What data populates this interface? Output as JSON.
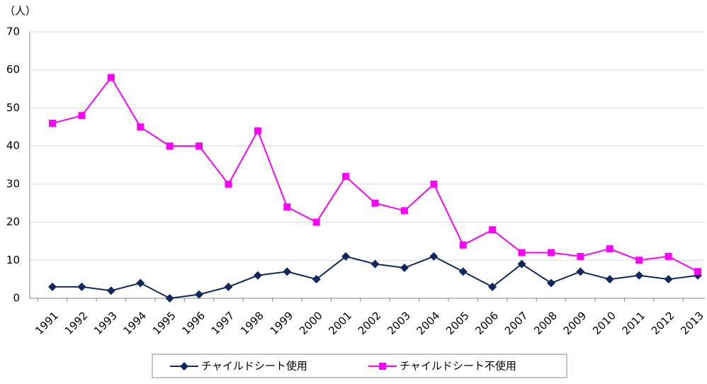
{
  "chart_data": {
    "type": "line",
    "y_axis_label": "（人）",
    "categories": [
      "1991",
      "1992",
      "1993",
      "1994",
      "1995",
      "1996",
      "1997",
      "1998",
      "1999",
      "2000",
      "2001",
      "2002",
      "2003",
      "2004",
      "2005",
      "2006",
      "2007",
      "2008",
      "2009",
      "2010",
      "2011",
      "2012",
      "2013"
    ],
    "series": [
      {
        "name": "チャイルドシート使用",
        "color": "#12285c",
        "marker": "diamond",
        "values": [
          3,
          3,
          2,
          4,
          0,
          1,
          3,
          6,
          7,
          5,
          11,
          9,
          8,
          11,
          7,
          3,
          9,
          4,
          7,
          5,
          6,
          5,
          6
        ]
      },
      {
        "name": "チャイルドシート不使用",
        "color": "#ff00ff",
        "marker": "square",
        "values": [
          46,
          48,
          58,
          45,
          40,
          40,
          30,
          44,
          24,
          20,
          32,
          25,
          23,
          30,
          14,
          18,
          12,
          12,
          11,
          13,
          10,
          11,
          7
        ]
      }
    ],
    "ylim": [
      0,
      70
    ],
    "yticks": [
      0,
      10,
      20,
      30,
      40,
      50,
      60,
      70
    ],
    "grid": true,
    "legend": "bottom"
  }
}
